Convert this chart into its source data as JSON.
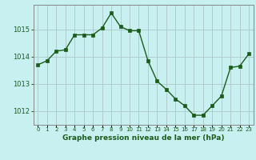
{
  "x": [
    0,
    1,
    2,
    3,
    4,
    5,
    6,
    7,
    8,
    9,
    10,
    11,
    12,
    13,
    14,
    15,
    16,
    17,
    18,
    19,
    20,
    21,
    22,
    23
  ],
  "y": [
    1013.7,
    1013.85,
    1014.2,
    1014.25,
    1014.8,
    1014.8,
    1014.8,
    1015.05,
    1015.6,
    1015.1,
    1014.95,
    1014.95,
    1013.85,
    1013.1,
    1012.8,
    1012.45,
    1012.2,
    1011.85,
    1011.85,
    1012.2,
    1012.55,
    1013.6,
    1013.65,
    1014.1
  ],
  "line_color": "#1a5c1a",
  "marker_color": "#1a5c1a",
  "bg_color": "#c8f0f0",
  "grid_color": "#b0cccc",
  "xlabel": "Graphe pression niveau de la mer (hPa)",
  "xlabel_color": "#1a5c1a",
  "tick_label_color": "#1a5c1a",
  "axis_color": "#888888",
  "ylim": [
    1011.5,
    1015.9
  ],
  "yticks": [
    1012,
    1013,
    1014,
    1015
  ],
  "xticks": [
    0,
    1,
    2,
    3,
    4,
    5,
    6,
    7,
    8,
    9,
    10,
    11,
    12,
    13,
    14,
    15,
    16,
    17,
    18,
    19,
    20,
    21,
    22,
    23
  ],
  "xtick_labels": [
    "0",
    "1",
    "2",
    "3",
    "4",
    "5",
    "6",
    "7",
    "8",
    "9",
    "10",
    "11",
    "12",
    "13",
    "14",
    "15",
    "16",
    "17",
    "18",
    "19",
    "20",
    "21",
    "22",
    "23"
  ]
}
